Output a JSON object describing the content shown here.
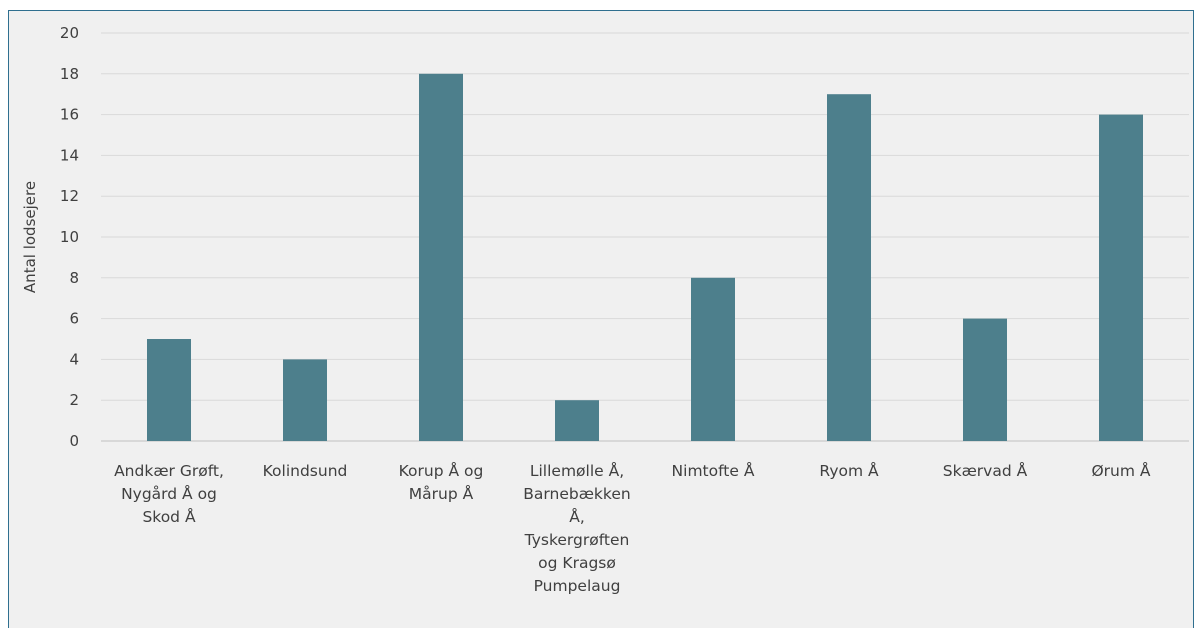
{
  "chart_data": {
    "type": "bar",
    "ylabel": "Antal lodsejere",
    "xlabel": "",
    "ylim": [
      0,
      20
    ],
    "y_ticks": [
      0,
      2,
      4,
      6,
      8,
      10,
      12,
      14,
      16,
      18,
      20
    ],
    "grid": true,
    "legend": "none",
    "bar_color": "#4d7f8c",
    "categories": [
      "Andkær Grøft, Nygård Å og Skod Å",
      "Kolindsund",
      "Korup Å og Mårup Å",
      "Lillemølle Å, Barnebækken Å, Tyskergrøften og Kragsø Pumpelaug",
      "Nimtofte Å",
      "Ryom Å",
      "Skærvad Å",
      "Ørum Å"
    ],
    "category_label_lines": [
      [
        "Andkær Grøft,",
        "Nygård Å og",
        "Skod Å"
      ],
      [
        "Kolindsund"
      ],
      [
        "Korup Å og",
        "Mårup Å"
      ],
      [
        "Lillemølle Å,",
        "Barnebækken",
        "Å,",
        "Tyskergrøften",
        "og Kragsø",
        "Pumpelaug"
      ],
      [
        "Nimtofte Å"
      ],
      [
        "Ryom Å"
      ],
      [
        "Skærvad Å"
      ],
      [
        "Ørum Å"
      ]
    ],
    "values": [
      5,
      4,
      18,
      2,
      8,
      17,
      6,
      16
    ]
  }
}
